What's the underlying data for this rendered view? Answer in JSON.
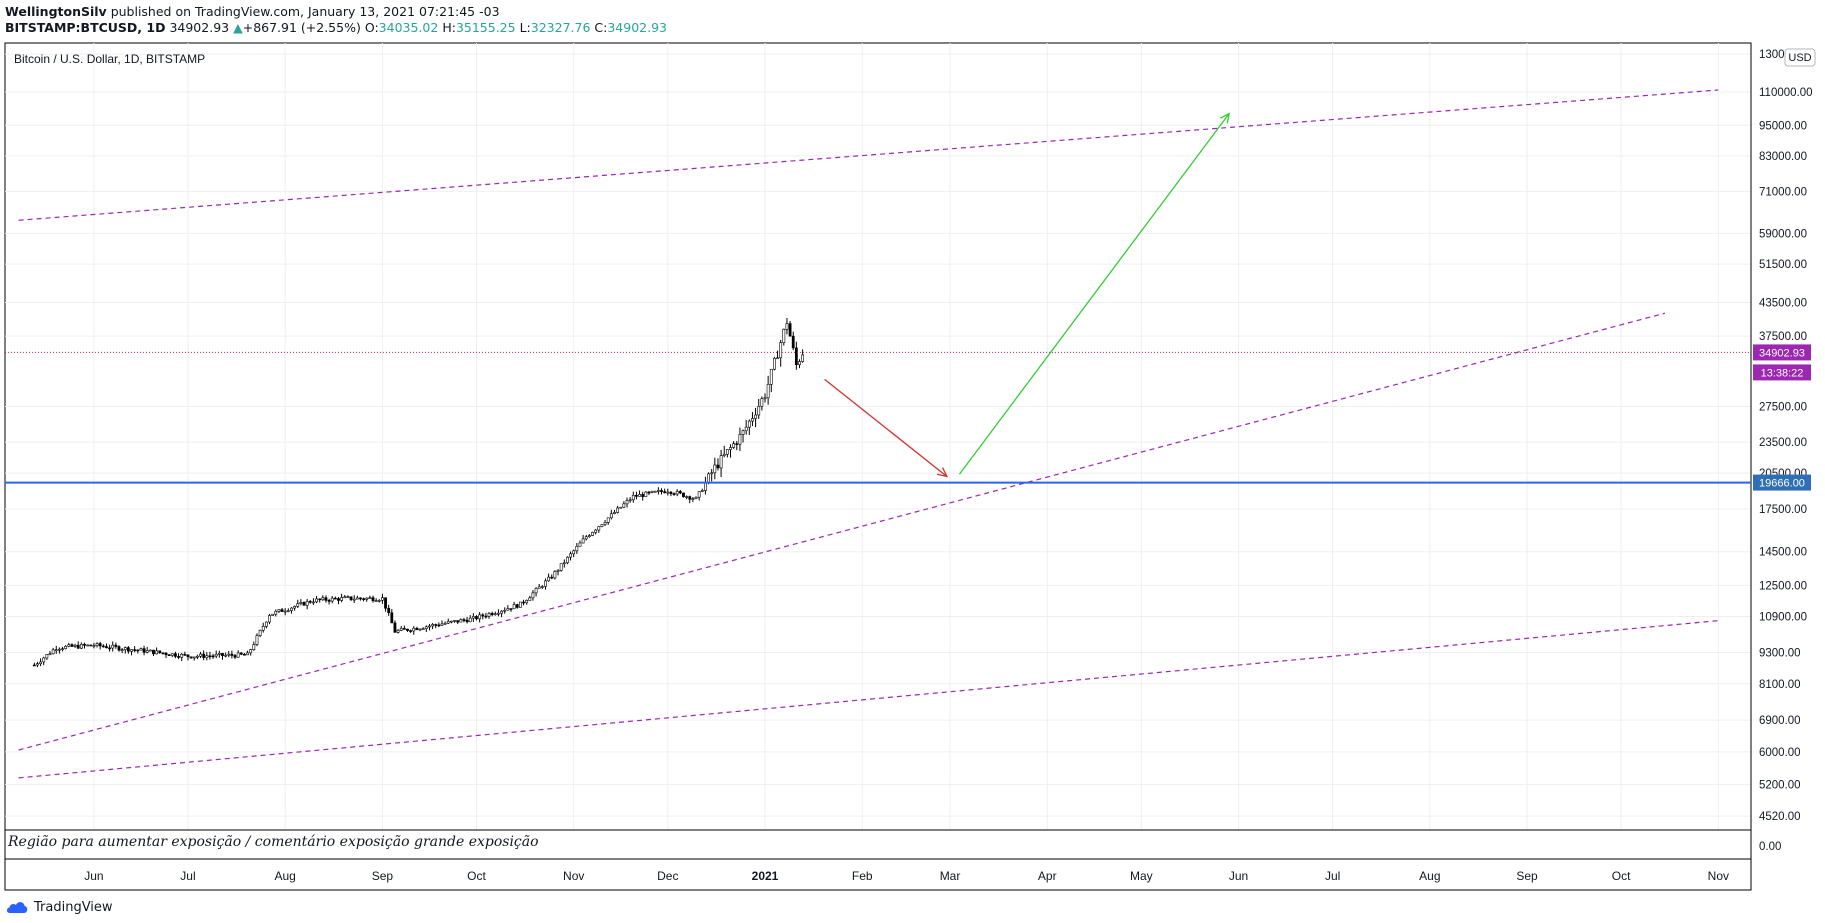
{
  "header": {
    "author": "WellingtonSilv",
    "published_text": "published on TradingView.com, January 13, 2021 07:21:45 -03",
    "symbol": "BITSTAMP:BTCUSD, 1D",
    "last": "34902.93",
    "change": "+867.91 (+2.55%)",
    "o_label": "O:",
    "o": "34035.02",
    "h_label": "H:",
    "h": "35155.25",
    "l_label": "L:",
    "l": "32327.76",
    "c_label": "C:",
    "c": "34902.93"
  },
  "chart": {
    "legend": "Bitcoin / U.S. Dollar, 1D, BITSTAMP",
    "currency": "USD",
    "price_tag": "34902.93",
    "countdown_tag": "13:38:22",
    "level_tag": "19666.00",
    "indicator_text": "Região para aumentar exposição / comentário exposição grande exposição",
    "brand": "TradingView",
    "colors": {
      "candle": "#000000",
      "channel": "#9c27b0",
      "level": "#2962ff",
      "level_tag": "#2f6fb5",
      "price_tag": "#9c27b0",
      "arrow_down": "#d32f2f",
      "arrow_up": "#33cc33",
      "grid": "#eeeff2"
    }
  },
  "chart_data": {
    "type": "candlestick",
    "title": "Bitcoin / U.S. Dollar, 1D, BITSTAMP",
    "x_ticks": [
      "Jun",
      "Jul",
      "Aug",
      "Sep",
      "Oct",
      "Nov",
      "Dec",
      "2021",
      "Feb",
      "Mar",
      "Apr",
      "May",
      "Jun",
      "Jul",
      "Aug",
      "Sep",
      "Oct",
      "Nov"
    ],
    "y_ticks": [
      "130000.00",
      "110000.00",
      "95000.00",
      "83000.00",
      "71000.00",
      "59000.00",
      "51500.00",
      "43500.00",
      "37500.00",
      "27500.00",
      "23500.00",
      "20500.00",
      "17500.00",
      "14500.00",
      "12500.00",
      "10900.00",
      "9300.00",
      "8100.00",
      "6900.00",
      "6000.00",
      "5200.00",
      "4520.00",
      "0.00"
    ],
    "y_scale": "log",
    "grid": true,
    "horizontal_level": 19666.0,
    "last_price": 34902.93,
    "price_anchors": [
      {
        "date": "2020-05-13",
        "close": 8800
      },
      {
        "date": "2020-05-20",
        "close": 9500
      },
      {
        "date": "2020-06-01",
        "close": 9600
      },
      {
        "date": "2020-06-15",
        "close": 9400
      },
      {
        "date": "2020-07-01",
        "close": 9150
      },
      {
        "date": "2020-07-20",
        "close": 9200
      },
      {
        "date": "2020-07-27",
        "close": 11000
      },
      {
        "date": "2020-08-10",
        "close": 11700
      },
      {
        "date": "2020-08-20",
        "close": 11800
      },
      {
        "date": "2020-09-01",
        "close": 11800
      },
      {
        "date": "2020-09-05",
        "close": 10200
      },
      {
        "date": "2020-09-30",
        "close": 10800
      },
      {
        "date": "2020-10-15",
        "close": 11500
      },
      {
        "date": "2020-10-25",
        "close": 13000
      },
      {
        "date": "2020-11-05",
        "close": 15500
      },
      {
        "date": "2020-11-20",
        "close": 18500
      },
      {
        "date": "2020-12-01",
        "close": 19000
      },
      {
        "date": "2020-12-10",
        "close": 18300
      },
      {
        "date": "2020-12-16",
        "close": 21000
      },
      {
        "date": "2020-12-25",
        "close": 24500
      },
      {
        "date": "2021-01-01",
        "close": 29000
      },
      {
        "date": "2021-01-08",
        "close": 40000
      },
      {
        "date": "2021-01-11",
        "close": 33000
      },
      {
        "date": "2021-01-13",
        "close": 34902.93
      }
    ],
    "trend_lines": [
      {
        "name": "upper-channel",
        "style": "dashed",
        "from": {
          "date": "2020-05-08",
          "price": 62500
        },
        "to": {
          "date": "2021-11-01",
          "price": 111000
        }
      },
      {
        "name": "middle-channel",
        "style": "dashed",
        "from": {
          "date": "2020-05-08",
          "price": 6050
        },
        "to": {
          "date": "2021-10-15",
          "price": 41500
        }
      },
      {
        "name": "lower-channel",
        "style": "dashed",
        "from": {
          "date": "2020-05-08",
          "price": 5350
        },
        "to": {
          "date": "2021-11-01",
          "price": 10700
        }
      }
    ],
    "arrows": [
      {
        "name": "down-arrow",
        "from": {
          "date": "2021-01-20",
          "price": 31000
        },
        "to": {
          "date": "2021-02-28",
          "price": 20200
        }
      },
      {
        "name": "up-arrow",
        "from": {
          "date": "2021-03-04",
          "price": 20400
        },
        "to": {
          "date": "2021-05-29",
          "price": 100000
        }
      }
    ]
  }
}
